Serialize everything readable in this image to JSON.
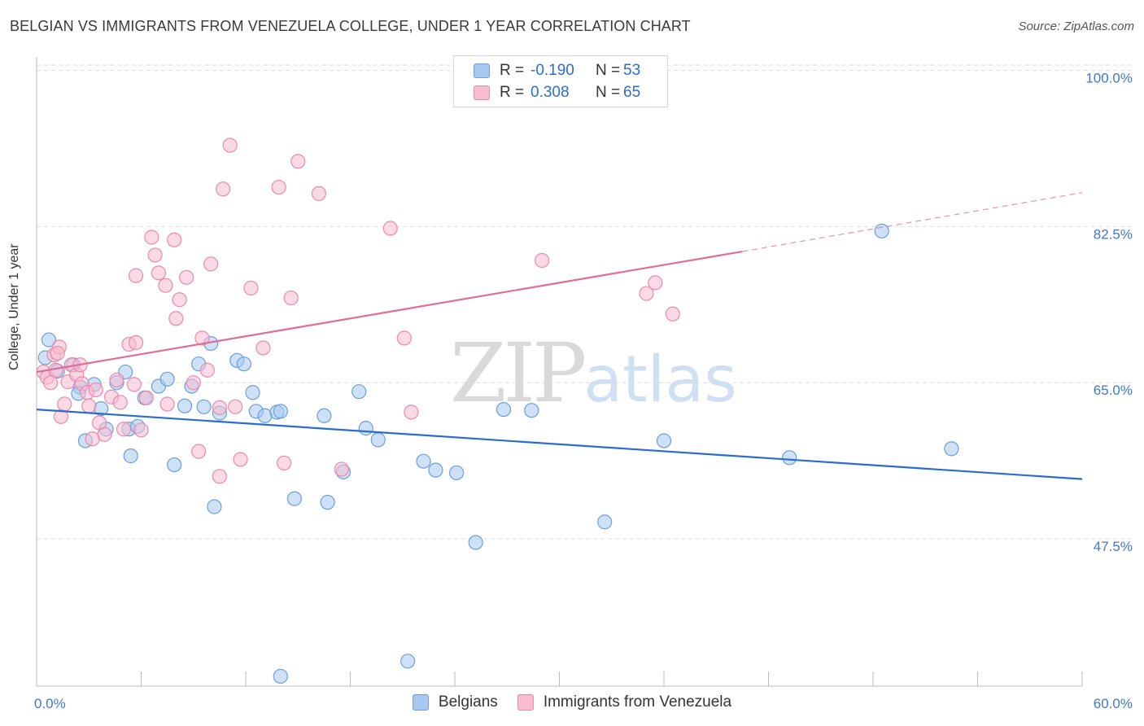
{
  "title": "BELGIAN VS IMMIGRANTS FROM VENEZUELA COLLEGE, UNDER 1 YEAR CORRELATION CHART",
  "source": "Source: ZipAtlas.com",
  "watermark": {
    "zip": "ZIP",
    "atlas": "atlas"
  },
  "legend": {
    "rows": [
      {
        "r_label": "R =",
        "r_value": "-0.190",
        "n_label": "N =",
        "n_value": "53",
        "color": "#a8c8ef",
        "border": "#6a9fdb"
      },
      {
        "r_label": "R =",
        "r_value": "0.308",
        "n_label": "N =",
        "n_value": "65",
        "color": "#f8bcd0",
        "border": "#e98aaa"
      }
    ]
  },
  "bottom_legend": [
    {
      "label": "Belgians",
      "color": "#a8c8ef",
      "border": "#6a9fdb"
    },
    {
      "label": "Immigrants from Venezuela",
      "color": "#f8bcd0",
      "border": "#e98aaa"
    }
  ],
  "chart_data": {
    "type": "scatter",
    "title": "BELGIAN VS IMMIGRANTS FROM VENEZUELA COLLEGE, UNDER 1 YEAR CORRELATION CHART",
    "xlabel": "",
    "ylabel": "College, Under 1 year",
    "xlim": [
      0,
      60
    ],
    "ylim": [
      31,
      101.5
    ],
    "x_tick_labels": [
      "0.0%",
      "60.0%"
    ],
    "y_ticks": [
      47.5,
      65.0,
      82.5,
      100.0
    ],
    "y_tick_labels": [
      "47.5%",
      "65.0%",
      "82.5%",
      "100.0%"
    ],
    "grid": true,
    "legend_position": "top-center",
    "series": [
      {
        "name": "Belgians",
        "color": "#6a9fdb",
        "fill": "#a8c8ef",
        "trend": {
          "x": [
            0,
            60
          ],
          "y": [
            62.0,
            54.2
          ],
          "color": "#2b6ec9"
        },
        "points": [
          [
            0.7,
            69.8
          ],
          [
            0.5,
            67.8
          ],
          [
            1.2,
            66.3
          ],
          [
            2.1,
            67.0
          ],
          [
            2.5,
            64.5
          ],
          [
            2.4,
            63.8
          ],
          [
            3.3,
            64.8
          ],
          [
            4.6,
            65.0
          ],
          [
            5.1,
            66.2
          ],
          [
            3.7,
            62.1
          ],
          [
            4.0,
            59.8
          ],
          [
            2.8,
            58.5
          ],
          [
            5.3,
            59.8
          ],
          [
            5.8,
            60.1
          ],
          [
            6.2,
            63.3
          ],
          [
            7.0,
            64.6
          ],
          [
            7.5,
            65.4
          ],
          [
            5.4,
            56.8
          ],
          [
            7.9,
            55.8
          ],
          [
            8.5,
            62.4
          ],
          [
            8.9,
            64.6
          ],
          [
            9.3,
            67.1
          ],
          [
            10.0,
            69.4
          ],
          [
            9.6,
            62.3
          ],
          [
            10.5,
            61.6
          ],
          [
            11.5,
            67.5
          ],
          [
            11.9,
            67.1
          ],
          [
            12.4,
            63.9
          ],
          [
            12.6,
            61.8
          ],
          [
            13.1,
            61.3
          ],
          [
            13.8,
            61.7
          ],
          [
            14.0,
            61.8
          ],
          [
            10.2,
            51.1
          ],
          [
            14.8,
            52.0
          ],
          [
            16.5,
            61.3
          ],
          [
            16.7,
            51.6
          ],
          [
            17.6,
            55.0
          ],
          [
            18.5,
            64.0
          ],
          [
            18.9,
            59.9
          ],
          [
            19.6,
            58.6
          ],
          [
            22.2,
            56.2
          ],
          [
            22.9,
            55.2
          ],
          [
            24.1,
            54.9
          ],
          [
            25.2,
            47.1
          ],
          [
            26.8,
            62.0
          ],
          [
            28.4,
            61.9
          ],
          [
            32.6,
            49.4
          ],
          [
            36.0,
            58.5
          ],
          [
            43.2,
            56.6
          ],
          [
            48.5,
            82.0
          ],
          [
            52.5,
            57.6
          ],
          [
            21.3,
            33.8
          ],
          [
            14.0,
            32.1
          ]
        ]
      },
      {
        "name": "Immigrants from Venezuela",
        "color": "#e98aaa",
        "fill": "#f8bcd0",
        "trend": {
          "x": [
            0,
            40.5,
            60
          ],
          "y": [
            66.2,
            79.7,
            86.3
          ],
          "color": "#e06c97",
          "solid_until": 40.5
        },
        "points": [
          [
            0.4,
            66.2
          ],
          [
            0.6,
            65.6
          ],
          [
            0.8,
            65.0
          ],
          [
            1.1,
            66.4
          ],
          [
            1.0,
            68.1
          ],
          [
            1.3,
            69.0
          ],
          [
            1.4,
            61.2
          ],
          [
            1.6,
            62.6
          ],
          [
            1.8,
            65.1
          ],
          [
            2.0,
            67.0
          ],
          [
            2.3,
            65.9
          ],
          [
            2.6,
            64.9
          ],
          [
            2.9,
            63.9
          ],
          [
            3.0,
            62.4
          ],
          [
            3.4,
            64.2
          ],
          [
            3.6,
            60.5
          ],
          [
            3.9,
            59.2
          ],
          [
            4.3,
            63.4
          ],
          [
            4.6,
            65.3
          ],
          [
            5.0,
            59.8
          ],
          [
            5.3,
            69.3
          ],
          [
            5.6,
            64.8
          ],
          [
            5.7,
            77.0
          ],
          [
            6.3,
            63.3
          ],
          [
            6.0,
            59.7
          ],
          [
            6.6,
            81.3
          ],
          [
            6.8,
            79.3
          ],
          [
            7.0,
            77.3
          ],
          [
            7.4,
            75.9
          ],
          [
            7.9,
            81.0
          ],
          [
            8.0,
            72.2
          ],
          [
            8.2,
            74.3
          ],
          [
            8.6,
            76.8
          ],
          [
            9.0,
            65.0
          ],
          [
            9.3,
            57.3
          ],
          [
            9.5,
            70.0
          ],
          [
            9.8,
            66.4
          ],
          [
            10.0,
            78.3
          ],
          [
            10.5,
            62.2
          ],
          [
            10.5,
            54.5
          ],
          [
            10.7,
            86.7
          ],
          [
            11.1,
            91.6
          ],
          [
            11.4,
            62.3
          ],
          [
            11.7,
            56.4
          ],
          [
            12.3,
            75.6
          ],
          [
            13.0,
            68.9
          ],
          [
            13.9,
            86.9
          ],
          [
            14.2,
            56.0
          ],
          [
            14.6,
            74.5
          ],
          [
            15.0,
            89.8
          ],
          [
            16.2,
            86.2
          ],
          [
            17.5,
            55.3
          ],
          [
            20.3,
            82.3
          ],
          [
            21.1,
            70.0
          ],
          [
            21.5,
            61.7
          ],
          [
            29.0,
            78.7
          ],
          [
            35.0,
            75.0
          ],
          [
            35.5,
            76.2
          ],
          [
            36.5,
            72.7
          ],
          [
            3.2,
            58.7
          ],
          [
            2.5,
            67.0
          ],
          [
            1.2,
            68.3
          ],
          [
            5.7,
            69.5
          ],
          [
            7.5,
            62.6
          ],
          [
            4.8,
            62.8
          ]
        ]
      }
    ]
  }
}
